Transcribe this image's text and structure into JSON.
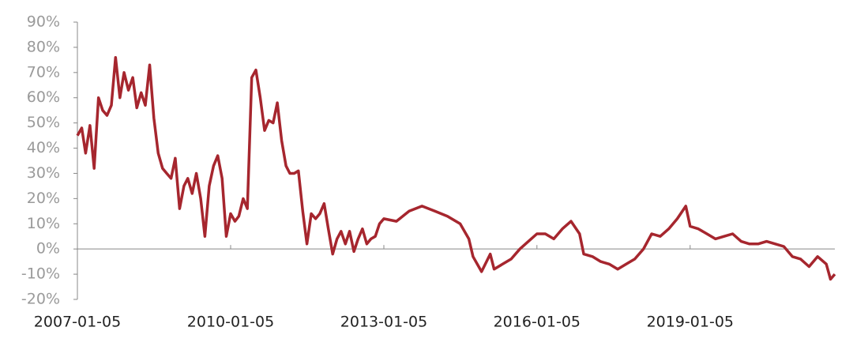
{
  "chart_data": {
    "type": "line",
    "x": [
      "2007-01-05",
      "2007-02-05",
      "2007-03-05",
      "2007-04-05",
      "2007-05-05",
      "2007-06-05",
      "2007-07-05",
      "2007-08-05",
      "2007-09-05",
      "2007-10-05",
      "2007-11-05",
      "2007-12-05",
      "2008-01-05",
      "2008-02-05",
      "2008-03-05",
      "2008-04-05",
      "2008-05-05",
      "2008-06-05",
      "2008-07-05",
      "2008-08-05",
      "2008-09-05",
      "2008-10-05",
      "2008-11-05",
      "2008-12-05",
      "2009-01-05",
      "2009-02-05",
      "2009-03-05",
      "2009-04-05",
      "2009-05-05",
      "2009-06-05",
      "2009-07-05",
      "2009-08-05",
      "2009-09-05",
      "2009-10-05",
      "2009-11-05",
      "2009-12-05",
      "2010-01-05",
      "2010-02-05",
      "2010-03-05",
      "2010-04-05",
      "2010-05-05",
      "2010-06-05",
      "2010-07-05",
      "2010-08-05",
      "2010-09-05",
      "2010-10-05",
      "2010-11-05",
      "2010-12-05",
      "2011-01-05",
      "2011-02-05",
      "2011-03-05",
      "2011-04-05",
      "2011-05-05",
      "2011-06-05",
      "2011-07-05",
      "2011-08-05",
      "2011-09-05",
      "2011-10-05",
      "2011-11-05",
      "2011-12-05",
      "2012-01-05",
      "2012-02-05",
      "2012-03-05",
      "2012-04-05",
      "2012-05-05",
      "2012-06-05",
      "2012-07-05",
      "2012-08-05",
      "2012-09-05",
      "2012-10-05",
      "2012-11-05",
      "2012-12-05",
      "2013-01-05",
      "2013-04-05",
      "2013-07-05",
      "2013-10-05",
      "2014-01-05",
      "2014-04-05",
      "2014-07-05",
      "2014-09-05",
      "2014-10-05",
      "2014-12-05",
      "2015-02-05",
      "2015-03-05",
      "2015-05-05",
      "2015-07-05",
      "2015-09-05",
      "2015-11-05",
      "2016-01-05",
      "2016-03-05",
      "2016-05-05",
      "2016-07-05",
      "2016-09-05",
      "2016-11-05",
      "2016-12-05",
      "2017-02-05",
      "2017-04-05",
      "2017-06-05",
      "2017-08-05",
      "2017-10-05",
      "2017-12-05",
      "2018-02-05",
      "2018-04-05",
      "2018-06-05",
      "2018-08-05",
      "2018-10-05",
      "2018-12-05",
      "2019-01-05",
      "2019-03-05",
      "2019-05-05",
      "2019-07-05",
      "2019-09-05",
      "2019-11-05",
      "2020-01-05",
      "2020-03-05",
      "2020-05-05",
      "2020-07-05",
      "2020-09-05",
      "2020-11-05",
      "2021-01-05",
      "2021-03-05",
      "2021-05-05",
      "2021-07-05",
      "2021-09-05",
      "2021-10-05",
      "2021-11-05"
    ],
    "series": [
      {
        "color": "#a6262e",
        "values": [
          45,
          48,
          38,
          49,
          32,
          60,
          55,
          53,
          57,
          76,
          60,
          70,
          63,
          68,
          56,
          62,
          57,
          73,
          52,
          38,
          32,
          30,
          28,
          36,
          16,
          25,
          28,
          22,
          30,
          20,
          5,
          25,
          33,
          37,
          28,
          5,
          14,
          11,
          13,
          20,
          16,
          68,
          71,
          60,
          47,
          51,
          50,
          58,
          43,
          33,
          30,
          30,
          31,
          15,
          2,
          14,
          12,
          14,
          18,
          8,
          -2,
          4,
          7,
          2,
          7,
          -1,
          4,
          8,
          2,
          4,
          5,
          10,
          12,
          11,
          15,
          17,
          15,
          13,
          10,
          4,
          -3,
          -9,
          -2,
          -8,
          -6,
          -4,
          0,
          3,
          6,
          6,
          4,
          8,
          11,
          6,
          -2,
          -3,
          -5,
          -6,
          -8,
          -6,
          -4,
          0,
          6,
          5,
          8,
          12,
          17,
          9,
          8,
          6,
          4,
          5,
          6,
          3,
          2,
          2,
          3,
          2,
          1,
          -3,
          -4,
          -7,
          -3,
          -6,
          -12,
          -10
        ]
      }
    ],
    "xlim": [
      "2007-01-05",
      "2021-11-05"
    ],
    "xticks": [
      "2007-01-05",
      "2010-01-05",
      "2013-01-05",
      "2016-01-05",
      "2019-01-05"
    ],
    "ylim": [
      -20,
      90
    ],
    "yticks": [
      {
        "value": 90,
        "label": "90%"
      },
      {
        "value": 80,
        "label": "80%"
      },
      {
        "value": 70,
        "label": "70%"
      },
      {
        "value": 60,
        "label": "60%"
      },
      {
        "value": 50,
        "label": "50%"
      },
      {
        "value": 40,
        "label": "40%"
      },
      {
        "value": 30,
        "label": "30%"
      },
      {
        "value": 20,
        "label": "20%"
      },
      {
        "value": 10,
        "label": "10%"
      },
      {
        "value": 0,
        "label": "0%"
      },
      {
        "value": -10,
        "label": "-10%"
      },
      {
        "value": -20,
        "label": "-20%"
      }
    ]
  }
}
